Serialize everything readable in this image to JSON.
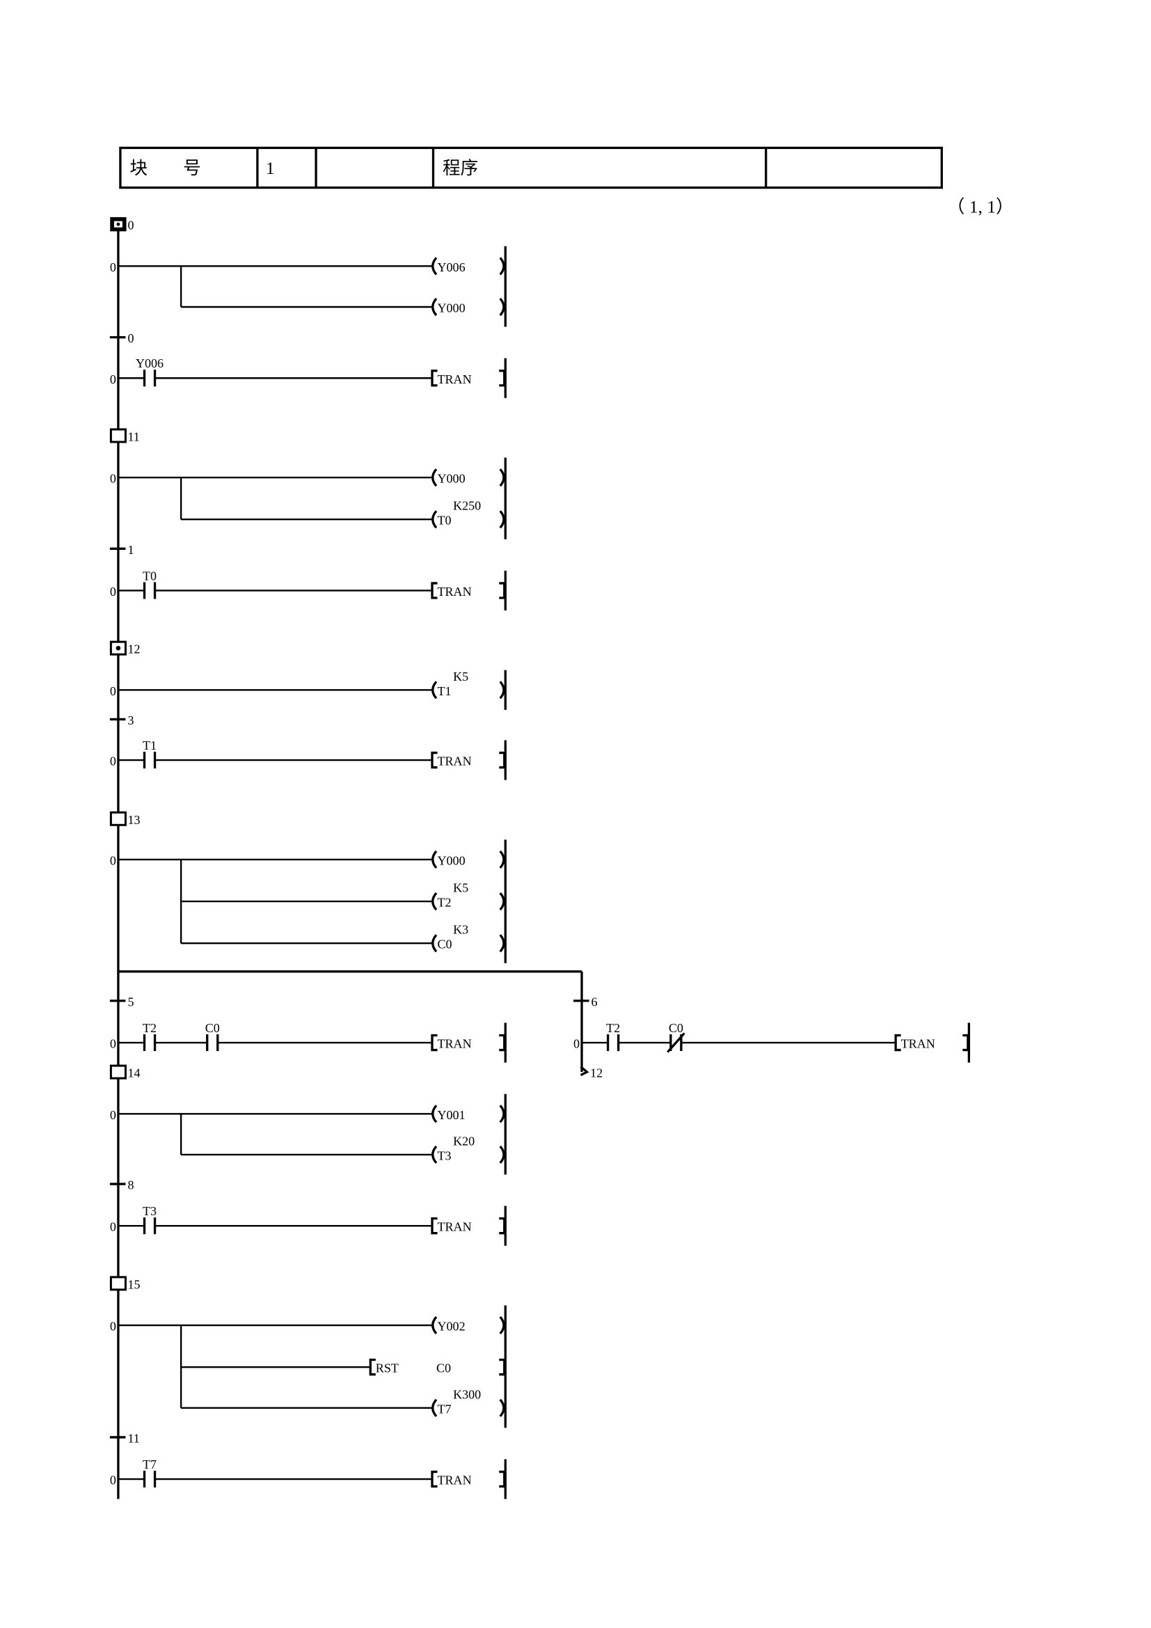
{
  "header": {
    "cells": [
      "块　　号",
      "1",
      "",
      "程序",
      ""
    ],
    "page_ref": "（  1,   1）"
  },
  "colors": {
    "ink": "#000000",
    "paper": "#ffffff"
  },
  "ladder": [
    {
      "kind": "step",
      "label": "0",
      "style": "initial"
    },
    {
      "kind": "rung",
      "prefix": "0",
      "contacts": [],
      "outputs": [
        {
          "type": "coil",
          "op": "Y006"
        },
        {
          "type": "coil",
          "op": "Y000"
        }
      ]
    },
    {
      "kind": "transition",
      "label": "0"
    },
    {
      "kind": "rung",
      "prefix": "0",
      "contacts": [
        {
          "type": "no",
          "op": "Y006"
        }
      ],
      "outputs": [
        {
          "type": "instr",
          "op": "TRAN"
        }
      ]
    },
    {
      "kind": "step",
      "label": "11",
      "style": "normal"
    },
    {
      "kind": "rung",
      "prefix": "0",
      "contacts": [],
      "outputs": [
        {
          "type": "coil",
          "op": "Y000"
        },
        {
          "type": "coil",
          "op": "T0",
          "k": "K250"
        }
      ]
    },
    {
      "kind": "transition",
      "label": "1"
    },
    {
      "kind": "rung",
      "prefix": "0",
      "contacts": [
        {
          "type": "no",
          "op": "T0"
        }
      ],
      "outputs": [
        {
          "type": "instr",
          "op": "TRAN"
        }
      ]
    },
    {
      "kind": "step",
      "label": "12",
      "style": "dot"
    },
    {
      "kind": "rung",
      "prefix": "0",
      "contacts": [],
      "outputs": [
        {
          "type": "coil",
          "op": "T1",
          "k": "K5"
        }
      ]
    },
    {
      "kind": "transition",
      "label": "3"
    },
    {
      "kind": "rung",
      "prefix": "0",
      "contacts": [
        {
          "type": "no",
          "op": "T1"
        }
      ],
      "outputs": [
        {
          "type": "instr",
          "op": "TRAN"
        }
      ]
    },
    {
      "kind": "step",
      "label": "13",
      "style": "normal"
    },
    {
      "kind": "rung",
      "prefix": "0",
      "contacts": [],
      "outputs": [
        {
          "type": "coil",
          "op": "Y000"
        },
        {
          "type": "coil",
          "op": "T2",
          "k": "K5"
        },
        {
          "type": "coil",
          "op": "C0",
          "k": "K3"
        }
      ]
    },
    {
      "kind": "divergence",
      "branches": [
        {
          "transition": "5",
          "rung": {
            "prefix": "0",
            "contacts": [
              {
                "type": "no",
                "op": "T2"
              },
              {
                "type": "no",
                "op": "C0"
              }
            ],
            "outputs": [
              {
                "type": "instr",
                "op": "TRAN"
              }
            ]
          }
        },
        {
          "transition": "6",
          "rung": {
            "prefix": "0",
            "contacts": [
              {
                "type": "no",
                "op": "T2"
              },
              {
                "type": "nc",
                "op": "C0"
              }
            ],
            "outputs": [
              {
                "type": "instr",
                "op": "TRAN"
              }
            ]
          },
          "jump": "12"
        }
      ]
    },
    {
      "kind": "step",
      "label": "14",
      "style": "normal"
    },
    {
      "kind": "rung",
      "prefix": "0",
      "contacts": [],
      "outputs": [
        {
          "type": "coil",
          "op": "Y001"
        },
        {
          "type": "coil",
          "op": "T3",
          "k": "K20"
        }
      ]
    },
    {
      "kind": "transition",
      "label": "8"
    },
    {
      "kind": "rung",
      "prefix": "0",
      "contacts": [
        {
          "type": "no",
          "op": "T3"
        }
      ],
      "outputs": [
        {
          "type": "instr",
          "op": "TRAN"
        }
      ]
    },
    {
      "kind": "step",
      "label": "15",
      "style": "normal"
    },
    {
      "kind": "rung",
      "prefix": "0",
      "contacts": [],
      "outputs": [
        {
          "type": "coil",
          "op": "Y002"
        },
        {
          "type": "instr",
          "op": "RST",
          "arg": "C0"
        },
        {
          "type": "coil",
          "op": "T7",
          "k": "K300"
        }
      ]
    },
    {
      "kind": "transition",
      "label": "11"
    },
    {
      "kind": "rung",
      "prefix": "0",
      "contacts": [
        {
          "type": "no",
          "op": "T7"
        }
      ],
      "outputs": [
        {
          "type": "instr",
          "op": "TRAN"
        }
      ]
    }
  ]
}
